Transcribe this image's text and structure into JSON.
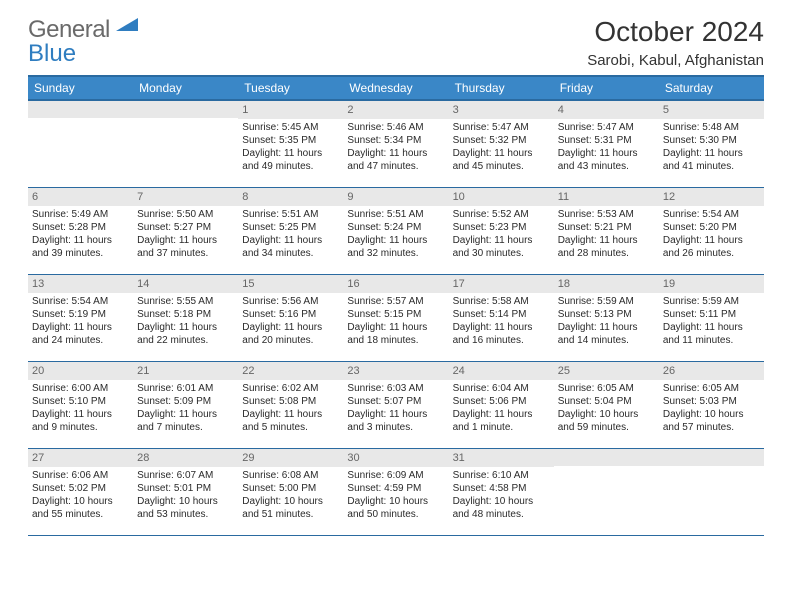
{
  "logo": {
    "word1": "General",
    "word2": "Blue"
  },
  "header": {
    "title": "October 2024",
    "location": "Sarobi, Kabul, Afghanistan"
  },
  "colors": {
    "header_bg": "#3a87c7",
    "header_border": "#2a6aa0",
    "daynum_bg": "#e8e8e8",
    "logo_gray": "#6a6a6a",
    "logo_blue": "#2f7dc0"
  },
  "weekday_labels": [
    "Sunday",
    "Monday",
    "Tuesday",
    "Wednesday",
    "Thursday",
    "Friday",
    "Saturday"
  ],
  "weeks": [
    [
      null,
      null,
      {
        "d": "1",
        "sr": "Sunrise: 5:45 AM",
        "ss": "Sunset: 5:35 PM",
        "dl": "Daylight: 11 hours and 49 minutes."
      },
      {
        "d": "2",
        "sr": "Sunrise: 5:46 AM",
        "ss": "Sunset: 5:34 PM",
        "dl": "Daylight: 11 hours and 47 minutes."
      },
      {
        "d": "3",
        "sr": "Sunrise: 5:47 AM",
        "ss": "Sunset: 5:32 PM",
        "dl": "Daylight: 11 hours and 45 minutes."
      },
      {
        "d": "4",
        "sr": "Sunrise: 5:47 AM",
        "ss": "Sunset: 5:31 PM",
        "dl": "Daylight: 11 hours and 43 minutes."
      },
      {
        "d": "5",
        "sr": "Sunrise: 5:48 AM",
        "ss": "Sunset: 5:30 PM",
        "dl": "Daylight: 11 hours and 41 minutes."
      }
    ],
    [
      {
        "d": "6",
        "sr": "Sunrise: 5:49 AM",
        "ss": "Sunset: 5:28 PM",
        "dl": "Daylight: 11 hours and 39 minutes."
      },
      {
        "d": "7",
        "sr": "Sunrise: 5:50 AM",
        "ss": "Sunset: 5:27 PM",
        "dl": "Daylight: 11 hours and 37 minutes."
      },
      {
        "d": "8",
        "sr": "Sunrise: 5:51 AM",
        "ss": "Sunset: 5:25 PM",
        "dl": "Daylight: 11 hours and 34 minutes."
      },
      {
        "d": "9",
        "sr": "Sunrise: 5:51 AM",
        "ss": "Sunset: 5:24 PM",
        "dl": "Daylight: 11 hours and 32 minutes."
      },
      {
        "d": "10",
        "sr": "Sunrise: 5:52 AM",
        "ss": "Sunset: 5:23 PM",
        "dl": "Daylight: 11 hours and 30 minutes."
      },
      {
        "d": "11",
        "sr": "Sunrise: 5:53 AM",
        "ss": "Sunset: 5:21 PM",
        "dl": "Daylight: 11 hours and 28 minutes."
      },
      {
        "d": "12",
        "sr": "Sunrise: 5:54 AM",
        "ss": "Sunset: 5:20 PM",
        "dl": "Daylight: 11 hours and 26 minutes."
      }
    ],
    [
      {
        "d": "13",
        "sr": "Sunrise: 5:54 AM",
        "ss": "Sunset: 5:19 PM",
        "dl": "Daylight: 11 hours and 24 minutes."
      },
      {
        "d": "14",
        "sr": "Sunrise: 5:55 AM",
        "ss": "Sunset: 5:18 PM",
        "dl": "Daylight: 11 hours and 22 minutes."
      },
      {
        "d": "15",
        "sr": "Sunrise: 5:56 AM",
        "ss": "Sunset: 5:16 PM",
        "dl": "Daylight: 11 hours and 20 minutes."
      },
      {
        "d": "16",
        "sr": "Sunrise: 5:57 AM",
        "ss": "Sunset: 5:15 PM",
        "dl": "Daylight: 11 hours and 18 minutes."
      },
      {
        "d": "17",
        "sr": "Sunrise: 5:58 AM",
        "ss": "Sunset: 5:14 PM",
        "dl": "Daylight: 11 hours and 16 minutes."
      },
      {
        "d": "18",
        "sr": "Sunrise: 5:59 AM",
        "ss": "Sunset: 5:13 PM",
        "dl": "Daylight: 11 hours and 14 minutes."
      },
      {
        "d": "19",
        "sr": "Sunrise: 5:59 AM",
        "ss": "Sunset: 5:11 PM",
        "dl": "Daylight: 11 hours and 11 minutes."
      }
    ],
    [
      {
        "d": "20",
        "sr": "Sunrise: 6:00 AM",
        "ss": "Sunset: 5:10 PM",
        "dl": "Daylight: 11 hours and 9 minutes."
      },
      {
        "d": "21",
        "sr": "Sunrise: 6:01 AM",
        "ss": "Sunset: 5:09 PM",
        "dl": "Daylight: 11 hours and 7 minutes."
      },
      {
        "d": "22",
        "sr": "Sunrise: 6:02 AM",
        "ss": "Sunset: 5:08 PM",
        "dl": "Daylight: 11 hours and 5 minutes."
      },
      {
        "d": "23",
        "sr": "Sunrise: 6:03 AM",
        "ss": "Sunset: 5:07 PM",
        "dl": "Daylight: 11 hours and 3 minutes."
      },
      {
        "d": "24",
        "sr": "Sunrise: 6:04 AM",
        "ss": "Sunset: 5:06 PM",
        "dl": "Daylight: 11 hours and 1 minute."
      },
      {
        "d": "25",
        "sr": "Sunrise: 6:05 AM",
        "ss": "Sunset: 5:04 PM",
        "dl": "Daylight: 10 hours and 59 minutes."
      },
      {
        "d": "26",
        "sr": "Sunrise: 6:05 AM",
        "ss": "Sunset: 5:03 PM",
        "dl": "Daylight: 10 hours and 57 minutes."
      }
    ],
    [
      {
        "d": "27",
        "sr": "Sunrise: 6:06 AM",
        "ss": "Sunset: 5:02 PM",
        "dl": "Daylight: 10 hours and 55 minutes."
      },
      {
        "d": "28",
        "sr": "Sunrise: 6:07 AM",
        "ss": "Sunset: 5:01 PM",
        "dl": "Daylight: 10 hours and 53 minutes."
      },
      {
        "d": "29",
        "sr": "Sunrise: 6:08 AM",
        "ss": "Sunset: 5:00 PM",
        "dl": "Daylight: 10 hours and 51 minutes."
      },
      {
        "d": "30",
        "sr": "Sunrise: 6:09 AM",
        "ss": "Sunset: 4:59 PM",
        "dl": "Daylight: 10 hours and 50 minutes."
      },
      {
        "d": "31",
        "sr": "Sunrise: 6:10 AM",
        "ss": "Sunset: 4:58 PM",
        "dl": "Daylight: 10 hours and 48 minutes."
      },
      null,
      null
    ]
  ]
}
